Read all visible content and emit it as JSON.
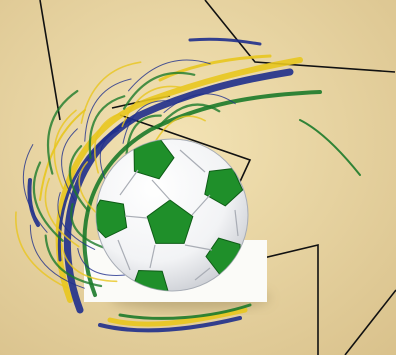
{
  "image": {
    "subject": "soccer-ball",
    "palette": {
      "background_light": "#f3e3b4",
      "background_dark": "#d8c08a",
      "ball_white": "#ffffff",
      "ball_shade": "#c9ccd2",
      "ball_green": "#1f8f2a",
      "ball_green_dark": "#0e5c16",
      "splash_blue": "#1f2f8c",
      "splash_yellow": "#e8c61e",
      "splash_green": "#1c7a2a",
      "line_color": "#111111",
      "card_white": "#fbfbf8"
    }
  }
}
